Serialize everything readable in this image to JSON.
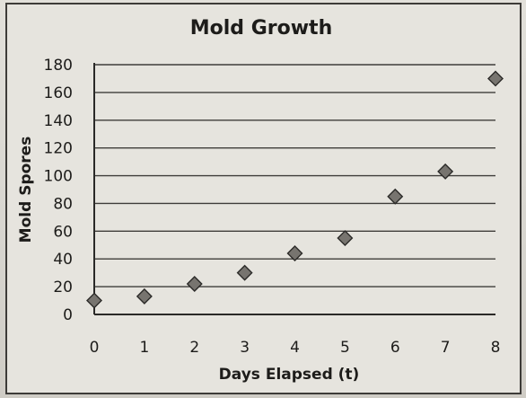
{
  "chart_data": {
    "type": "scatter",
    "title": "Mold Growth",
    "xlabel": "Days Elapsed (t)",
    "ylabel": "Mold Spores",
    "xlim": [
      0,
      8
    ],
    "ylim": [
      0,
      180
    ],
    "x_ticks": [
      "0",
      "1",
      "2",
      "3",
      "4",
      "5",
      "6",
      "7",
      "8"
    ],
    "y_ticks": [
      "0",
      "20",
      "40",
      "60",
      "80",
      "100",
      "120",
      "140",
      "160",
      "180"
    ],
    "grid": true,
    "marker": "diamond",
    "colors": {
      "marker": "#77746f",
      "marker_edge": "#2b2a28",
      "gridline": "#3f3d3a",
      "axis": "#2a2927"
    },
    "points": [
      {
        "x": 0,
        "y": 10
      },
      {
        "x": 1,
        "y": 13
      },
      {
        "x": 2,
        "y": 22
      },
      {
        "x": 3,
        "y": 30
      },
      {
        "x": 4,
        "y": 44
      },
      {
        "x": 5,
        "y": 55
      },
      {
        "x": 6,
        "y": 85
      },
      {
        "x": 7,
        "y": 103
      },
      {
        "x": 8,
        "y": 170
      }
    ]
  }
}
